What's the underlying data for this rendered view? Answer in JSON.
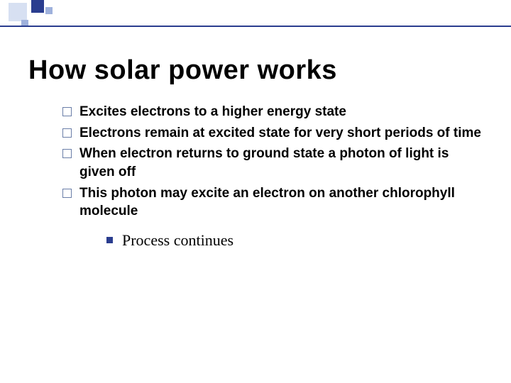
{
  "colors": {
    "background": "#ffffff",
    "rule": "#2a3d8f",
    "decor_light": "#d7e0f2",
    "decor_mid": "#9fb1dc",
    "decor_dark": "#2a3d8f",
    "bullet_border": "#6a7ea8",
    "sub_bullet": "#2a3d8f",
    "text": "#000000"
  },
  "typography": {
    "title_fontsize": 38,
    "title_weight": 700,
    "body_fontsize": 19,
    "body_weight": 700,
    "sub_fontsize": 22,
    "sub_weight": 400,
    "title_font": "Verdana",
    "sub_font": "Times New Roman"
  },
  "title": "How solar power works",
  "bullets": [
    "Excites electrons to a higher energy state",
    "Electrons remain at excited state for very short periods of time",
    "When electron returns to ground state a photon of light is given off",
    "This photon may excite an electron on another chlorophyll molecule"
  ],
  "sub_bullets": [
    "Process continues"
  ]
}
